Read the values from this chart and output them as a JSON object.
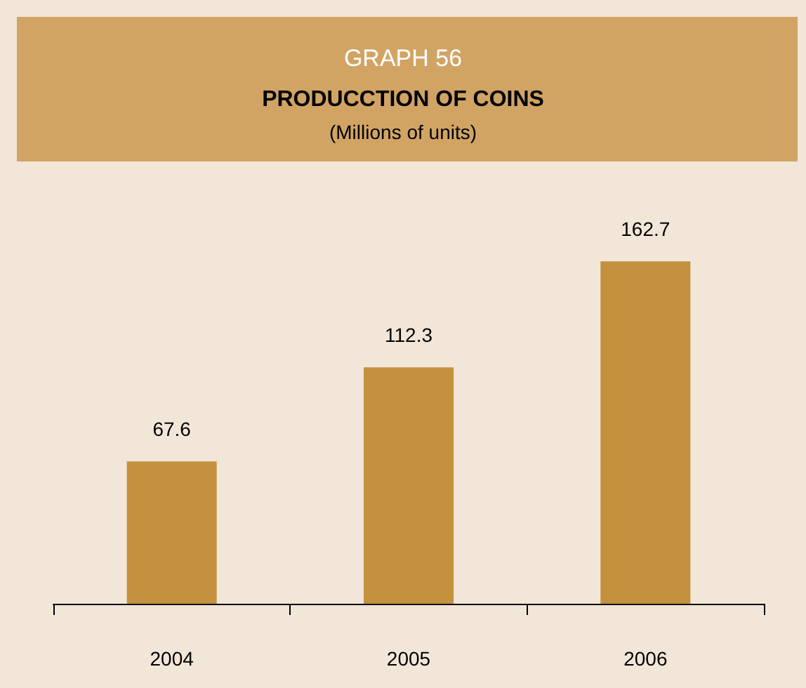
{
  "chart_data": {
    "type": "bar",
    "title": "GRAPH 56",
    "subtitle": "PRODUCCTION OF COINS",
    "annotations": [
      "(Millions of units)"
    ],
    "categories": [
      "2004",
      "2005",
      "2006"
    ],
    "values": [
      67.6,
      112.3,
      162.7
    ],
    "color": "#c4913f",
    "data_labels": true
  }
}
